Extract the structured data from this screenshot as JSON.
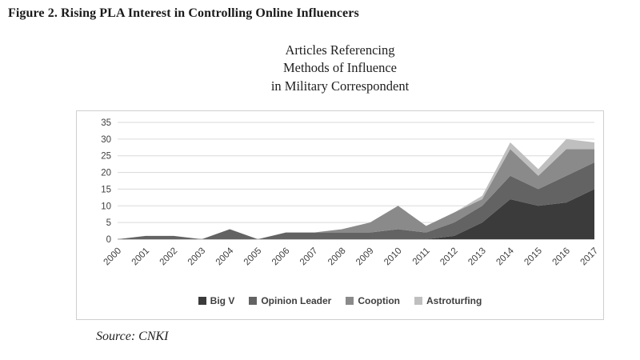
{
  "figure_title": "Figure 2. Rising PLA Interest in Controlling Online Influencers",
  "chart_title": "Articles Referencing\nMethods of Influence\nin Military Correspondent",
  "source": "Source: CNKI",
  "chart_data": {
    "type": "area",
    "stacked": true,
    "title": "Articles Referencing Methods of Influence in Military Correspondent",
    "xlabel": "",
    "ylabel": "",
    "ylim": [
      0,
      35
    ],
    "yticks": [
      0,
      5,
      10,
      15,
      20,
      25,
      30,
      35
    ],
    "grid": true,
    "legend_position": "bottom",
    "x": [
      "2000",
      "2001",
      "2002",
      "2003",
      "2004",
      "2005",
      "2006",
      "2007",
      "2008",
      "2009",
      "2010",
      "2011",
      "2012",
      "2013",
      "2014",
      "2015",
      "2016",
      "2017"
    ],
    "series": [
      {
        "name": "Big V",
        "color": "#3b3b3b",
        "values": [
          0,
          0,
          0,
          0,
          0,
          0,
          0,
          0,
          0,
          0,
          0,
          0,
          1,
          5,
          12,
          10,
          11,
          15
        ]
      },
      {
        "name": "Opinion Leader",
        "color": "#636363",
        "values": [
          0,
          1,
          1,
          0,
          3,
          0,
          2,
          2,
          2,
          2,
          3,
          2,
          4,
          5,
          7,
          5,
          8,
          8
        ]
      },
      {
        "name": "Cooption",
        "color": "#8a8a8a",
        "values": [
          0,
          0,
          0,
          0,
          0,
          0,
          0,
          0,
          1,
          3,
          7,
          2,
          3,
          2,
          8,
          4,
          8,
          4
        ]
      },
      {
        "name": "Astroturfing",
        "color": "#bfbfbf",
        "values": [
          0,
          0,
          0,
          0,
          0,
          0,
          0,
          0,
          0,
          0,
          0,
          0,
          0,
          1,
          2,
          2,
          3,
          2
        ]
      }
    ]
  }
}
